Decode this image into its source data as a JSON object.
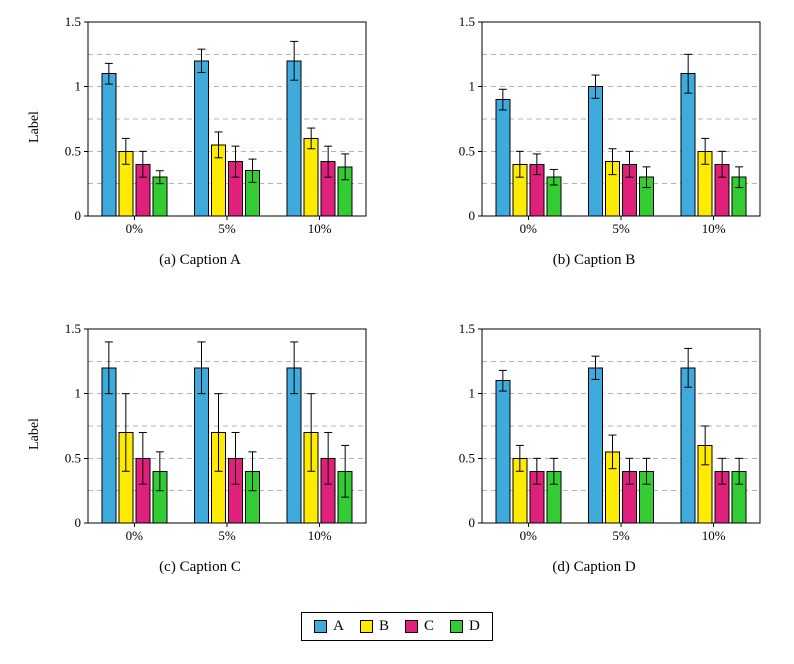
{
  "colors": {
    "grid": "#b3b3b3",
    "axis": "#000000",
    "bar_border": "#000000",
    "series_a": "#3FAADC",
    "series_b": "#FFEB00",
    "series_c": "#E0217C",
    "series_d": "#33CC33"
  },
  "legend": {
    "entries": [
      {
        "label": "A",
        "color": "#3FAADC"
      },
      {
        "label": "B",
        "color": "#FFEB00"
      },
      {
        "label": "C",
        "color": "#E0217C"
      },
      {
        "label": "D",
        "color": "#33CC33"
      }
    ]
  },
  "chart_data": [
    {
      "type": "bar",
      "caption": "(a) Caption A",
      "ylabel": "Label",
      "categories": [
        "0%",
        "5%",
        "10%"
      ],
      "ylim": [
        0,
        1.5
      ],
      "yticks": [
        0,
        0.5,
        1,
        1.5
      ],
      "gridlines": [
        0.25,
        0.5,
        0.75,
        1,
        1.25
      ],
      "grid": "dashed",
      "legend_position": "shared-bottom",
      "series": [
        {
          "name": "A",
          "color": "#3FAADC",
          "values": [
            1.1,
            1.2,
            1.2
          ],
          "errors": [
            0.08,
            0.09,
            0.15
          ]
        },
        {
          "name": "B",
          "color": "#FFEB00",
          "values": [
            0.5,
            0.55,
            0.6
          ],
          "errors": [
            0.1,
            0.1,
            0.08
          ]
        },
        {
          "name": "C",
          "color": "#E0217C",
          "values": [
            0.4,
            0.42,
            0.42
          ],
          "errors": [
            0.1,
            0.12,
            0.12
          ]
        },
        {
          "name": "D",
          "color": "#33CC33",
          "values": [
            0.3,
            0.35,
            0.38
          ],
          "errors": [
            0.05,
            0.09,
            0.1
          ]
        }
      ]
    },
    {
      "type": "bar",
      "caption": "(b) Caption B",
      "ylabel": "",
      "categories": [
        "0%",
        "5%",
        "10%"
      ],
      "ylim": [
        0,
        1.5
      ],
      "yticks": [
        0,
        0.5,
        1,
        1.5
      ],
      "gridlines": [
        0.25,
        0.5,
        0.75,
        1,
        1.25
      ],
      "grid": "dashed",
      "legend_position": "shared-bottom",
      "series": [
        {
          "name": "A",
          "color": "#3FAADC",
          "values": [
            0.9,
            1.0,
            1.1
          ],
          "errors": [
            0.08,
            0.09,
            0.15
          ]
        },
        {
          "name": "B",
          "color": "#FFEB00",
          "values": [
            0.4,
            0.42,
            0.5
          ],
          "errors": [
            0.1,
            0.1,
            0.1
          ]
        },
        {
          "name": "C",
          "color": "#E0217C",
          "values": [
            0.4,
            0.4,
            0.4
          ],
          "errors": [
            0.08,
            0.1,
            0.1
          ]
        },
        {
          "name": "D",
          "color": "#33CC33",
          "values": [
            0.3,
            0.3,
            0.3
          ],
          "errors": [
            0.06,
            0.08,
            0.08
          ]
        }
      ]
    },
    {
      "type": "bar",
      "caption": "(c) Caption C",
      "ylabel": "Label",
      "categories": [
        "0%",
        "5%",
        "10%"
      ],
      "ylim": [
        0,
        1.5
      ],
      "yticks": [
        0,
        0.5,
        1,
        1.5
      ],
      "gridlines": [
        0.25,
        0.5,
        0.75,
        1,
        1.25
      ],
      "grid": "dashed",
      "legend_position": "shared-bottom",
      "series": [
        {
          "name": "A",
          "color": "#3FAADC",
          "values": [
            1.2,
            1.2,
            1.2
          ],
          "errors": [
            0.2,
            0.2,
            0.2
          ]
        },
        {
          "name": "B",
          "color": "#FFEB00",
          "values": [
            0.7,
            0.7,
            0.7
          ],
          "errors": [
            0.3,
            0.3,
            0.3
          ]
        },
        {
          "name": "C",
          "color": "#E0217C",
          "values": [
            0.5,
            0.5,
            0.5
          ],
          "errors": [
            0.2,
            0.2,
            0.2
          ]
        },
        {
          "name": "D",
          "color": "#33CC33",
          "values": [
            0.4,
            0.4,
            0.4
          ],
          "errors": [
            0.15,
            0.15,
            0.2
          ]
        }
      ]
    },
    {
      "type": "bar",
      "caption": "(d) Caption D",
      "ylabel": "",
      "categories": [
        "0%",
        "5%",
        "10%"
      ],
      "ylim": [
        0,
        1.5
      ],
      "yticks": [
        0,
        0.5,
        1,
        1.5
      ],
      "gridlines": [
        0.25,
        0.5,
        0.75,
        1,
        1.25
      ],
      "grid": "dashed",
      "legend_position": "shared-bottom",
      "series": [
        {
          "name": "A",
          "color": "#3FAADC",
          "values": [
            1.1,
            1.2,
            1.2
          ],
          "errors": [
            0.08,
            0.09,
            0.15
          ]
        },
        {
          "name": "B",
          "color": "#FFEB00",
          "values": [
            0.5,
            0.55,
            0.6
          ],
          "errors": [
            0.1,
            0.13,
            0.15
          ]
        },
        {
          "name": "C",
          "color": "#E0217C",
          "values": [
            0.4,
            0.4,
            0.4
          ],
          "errors": [
            0.1,
            0.1,
            0.1
          ]
        },
        {
          "name": "D",
          "color": "#33CC33",
          "values": [
            0.4,
            0.4,
            0.4
          ],
          "errors": [
            0.1,
            0.1,
            0.1
          ]
        }
      ]
    }
  ]
}
